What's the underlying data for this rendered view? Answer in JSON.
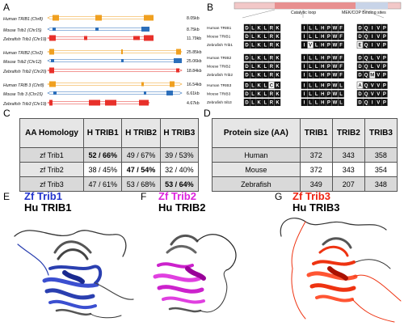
{
  "panels": {
    "a": "A",
    "b": "B",
    "c": "C",
    "d": "D",
    "e": "E",
    "f": "F",
    "g": "G"
  },
  "panel_a": {
    "rows": [
      {
        "name": "Human TRIB1 (Chr8)",
        "size": "8.05kb",
        "color": "#f0a020"
      },
      {
        "name": "Mouse Trib1 (Chr15)",
        "size": "8.75kb",
        "color": "#2c6fbb"
      },
      {
        "name": "Zebrafish Trib1 (Chr19)",
        "size": "11.79kb",
        "color": "#e8302a"
      },
      {
        "name": "Human TRIB2 (Chr2)",
        "size": "25.85kb",
        "color": "#f0a020"
      },
      {
        "name": "Mouse Trib2 (Chr12)",
        "size": "25.06kb",
        "color": "#2c6fbb"
      },
      {
        "name": "Zebrafish Trib2 (Chr20)",
        "size": "18.84kb",
        "color": "#e8302a"
      },
      {
        "name": "Human TRIB 3 (Chr8)",
        "size": "16.54kb",
        "color": "#f0a020"
      },
      {
        "name": "Mouse Trib 3 (Chr15)",
        "size": "6.61kb",
        "color": "#2c6fbb"
      },
      {
        "name": "Zebrafish Trib3 (Chr19)",
        "size": "4.67kb",
        "color": "#e8302a"
      }
    ]
  },
  "panel_b": {
    "label_catalytic": "Catalytic loop",
    "label_binding": "MEK/COP Binding sites",
    "groups": [
      [
        {
          "name": "Human TRIB1",
          "m1": "DLKLRK",
          "m2": "ILLHPWF",
          "m3": "DQIVP"
        },
        {
          "name": "Mouse TRIB1",
          "m1": "DLKLRK",
          "m2": "ILLHPWF",
          "m3": "DQIVP"
        },
        {
          "name": "Zebrafish Trib1",
          "m1": "DLKLRK",
          "m2": "IVLHPWF",
          "m3": "EQIVP"
        }
      ],
      [
        {
          "name": "Human TRIB2",
          "m1": "DLKLRK",
          "m2": "ILLHPWF",
          "m3": "DQLVP"
        },
        {
          "name": "Mouse TRIB2",
          "m1": "DLKLRK",
          "m2": "ILLHPWF",
          "m3": "DQLVP"
        },
        {
          "name": "Zebrafish Trib2",
          "m1": "DLKLRK",
          "m2": "ILLHPWF",
          "m3": "DQMVP"
        }
      ],
      [
        {
          "name": "Human TRIB3",
          "m1": "DLKLCK",
          "m2": "ILLHPWL",
          "m3": "AQVVP"
        },
        {
          "name": "Mouse TRIB3",
          "m1": "DLKLRK",
          "m2": "ILLHPWL",
          "m3": "DQVVP"
        },
        {
          "name": "Zebrafish trib3",
          "m1": "DLKLRK",
          "m2": "ILLHPWL",
          "m3": "DQIVP"
        }
      ]
    ]
  },
  "table_c": {
    "corner": "AA Homology",
    "columns": [
      "H TRIB1",
      "H TRIB2",
      "H TRIB3"
    ],
    "rows": [
      {
        "label": "zf Trib1",
        "cells": [
          "52 / 66%",
          "49 / 67%",
          "39 / 53%"
        ]
      },
      {
        "label": "zf Trib2",
        "cells": [
          "38 / 45%",
          "47 / 54%",
          "32 / 40%"
        ]
      },
      {
        "label": "zf Trib3",
        "cells": [
          "47 / 61%",
          "53 / 68%",
          "53 / 64%"
        ]
      }
    ]
  },
  "table_d": {
    "corner": "Protein size (AA)",
    "columns": [
      "TRIB1",
      "TRIB2",
      "TRIB3"
    ],
    "rows": [
      {
        "label": "Human",
        "cells": [
          "372",
          "343",
          "358"
        ]
      },
      {
        "label": "Mouse",
        "cells": [
          "372",
          "343",
          "354"
        ]
      },
      {
        "label": "Zebrafish",
        "cells": [
          "349",
          "207",
          "348"
        ]
      }
    ]
  },
  "panel_e": {
    "line1": "Zf Trib1",
    "line2": "Hu TRIB1",
    "color": "#2233cc"
  },
  "panel_f": {
    "line1": "Zf Trib2",
    "line2": "Hu TRIB2",
    "color": "#dd22dd"
  },
  "panel_g": {
    "line1": "Zf Trib3",
    "line2": "Hu TRIB3",
    "color": "#ee2211"
  }
}
